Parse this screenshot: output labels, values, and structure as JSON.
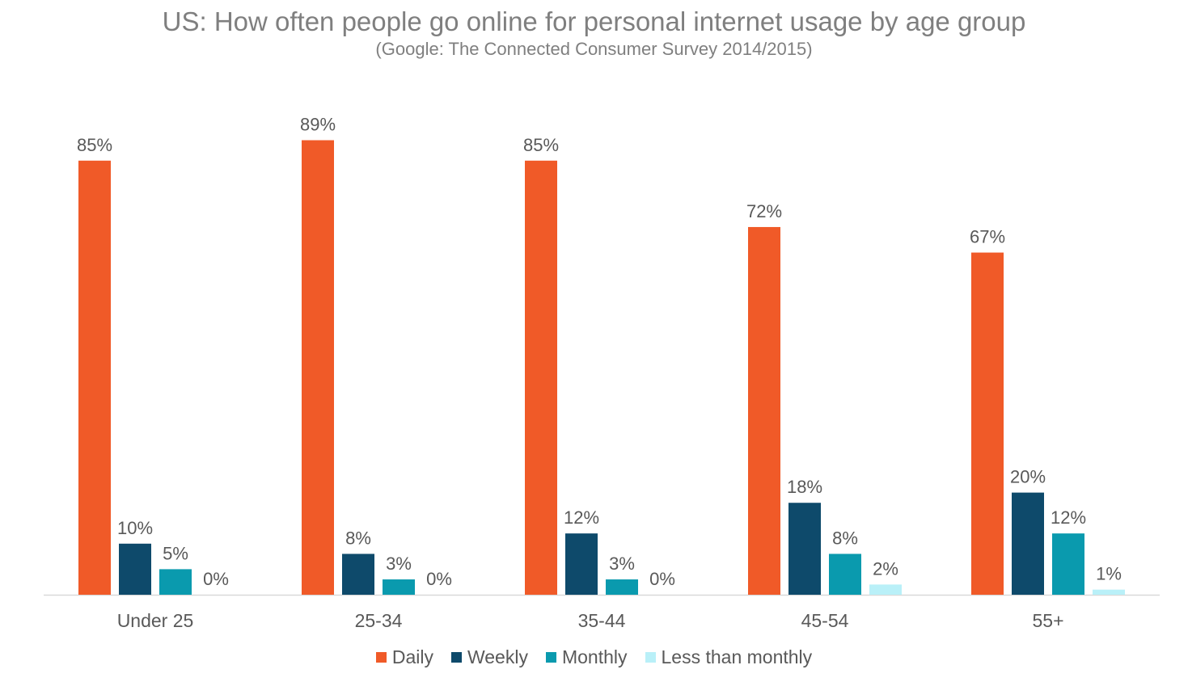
{
  "chart_data": {
    "type": "bar",
    "title": "US: How often people go online for personal internet usage by age group",
    "subtitle": "(Google: The Connected Consumer Survey 2014/2015)",
    "categories": [
      "Under 25",
      "25-34",
      "35-44",
      "45-54",
      "55+"
    ],
    "series": [
      {
        "name": "Daily",
        "color": "#f05a28",
        "values": [
          85,
          89,
          85,
          72,
          67
        ],
        "labels": [
          "85%",
          "89%",
          "85%",
          "72%",
          "67%"
        ]
      },
      {
        "name": "Weekly",
        "color": "#0e4a6b",
        "values": [
          10,
          8,
          12,
          18,
          20
        ],
        "labels": [
          "10%",
          "8%",
          "12%",
          "18%",
          "20%"
        ]
      },
      {
        "name": "Monthly",
        "color": "#0a9aae",
        "values": [
          5,
          3,
          3,
          8,
          12
        ],
        "labels": [
          "5%",
          "3%",
          "3%",
          "8%",
          "12%"
        ]
      },
      {
        "name": "Less than monthly",
        "color": "#b9f0f8",
        "values": [
          0,
          0,
          0,
          2,
          1
        ],
        "labels": [
          "0%",
          "0%",
          "0%",
          "2%",
          "1%"
        ]
      }
    ],
    "ylim": [
      0,
      100
    ],
    "grid": false,
    "legend_position": "bottom"
  }
}
